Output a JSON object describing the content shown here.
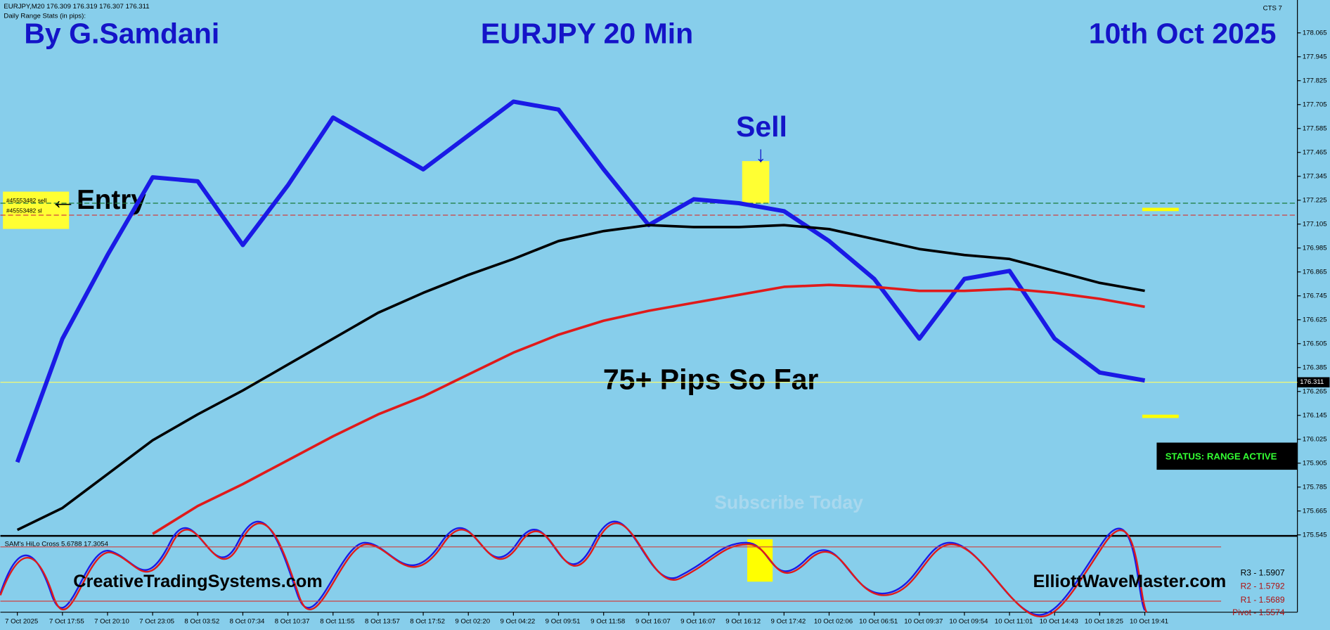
{
  "chart_data": {
    "type": "line",
    "symbol_info": "EURJPY,M20  176.309 176.319 176.307 176.311",
    "stats_title": "Daily Range Stats (in pips):",
    "author": "By G.Samdani",
    "title": "EURJPY 20 Min",
    "date": "10th Oct 2025",
    "platform_tag": "CTS 7",
    "annotations": {
      "sell": "Sell",
      "entry": "←Entry",
      "result": "75+ Pips So Far",
      "subscribe": "Subscribe Today",
      "order_sell": "#45553482 sell",
      "order_sl": "#45553482 sl"
    },
    "status": "STATUS: RANGE ACTIVE",
    "indicator_title": "SAM's HiLo Cross 5.6788 17.3054",
    "website_left": "CreativeTradingSystems.com",
    "website_right": "ElliottWaveMaster.com",
    "pivots": [
      "R3 - 1.5907",
      "R2 - 1.5792",
      "R1 - 1.5689",
      "Pivot - 1.5574"
    ],
    "last_price": 176.311,
    "levels": [
      {
        "value": 177.21,
        "color": "#1a7a3a"
      },
      {
        "value": 177.15,
        "color": "#d04040"
      }
    ],
    "categories": [
      "7 Oct 2025",
      "7 Oct 17:55",
      "7 Oct 20:10",
      "7 Oct 23:05",
      "8 Oct 03:52",
      "8 Oct 07:34",
      "8 Oct 10:37",
      "8 Oct 11:55",
      "8 Oct 13:57",
      "8 Oct 17:52",
      "9 Oct 02:20",
      "9 Oct 04:22",
      "9 Oct 09:51",
      "9 Oct 11:58",
      "9 Oct 16:07",
      "9 Oct 16:07",
      "9 Oct 16:12",
      "9 Oct 17:42",
      "10 Oct 02:06",
      "10 Oct 06:51",
      "10 Oct 09:37",
      "10 Oct 09:54",
      "10 Oct 11:01",
      "10 Oct 14:43",
      "10 Oct 18:25",
      "10 Oct 19:41"
    ],
    "series": [
      {
        "color": "#1a1ae6",
        "values": [
          175.91,
          176.53,
          176.95,
          177.34,
          177.32,
          177.0,
          177.3,
          177.64,
          177.51,
          177.38,
          177.55,
          177.72,
          177.68,
          177.38,
          177.1,
          177.23,
          177.21,
          177.17,
          177.02,
          176.83,
          176.53,
          176.83,
          176.87,
          176.53,
          176.36,
          176.32
        ]
      },
      {
        "color": "#e01a1a",
        "values": [
          null,
          null,
          null,
          175.55,
          175.69,
          175.8,
          175.92,
          176.04,
          176.15,
          176.24,
          176.35,
          176.46,
          176.55,
          176.62,
          176.67,
          176.71,
          176.75,
          176.79,
          176.8,
          176.79,
          176.77,
          176.77,
          176.78,
          176.76,
          176.73,
          176.69
        ]
      },
      {
        "color": "#000000",
        "values": [
          175.57,
          175.68,
          175.85,
          176.02,
          176.15,
          176.27,
          176.4,
          176.53,
          176.66,
          176.76,
          176.85,
          176.93,
          177.02,
          177.07,
          177.1,
          177.09,
          177.09,
          177.1,
          177.08,
          177.03,
          176.98,
          176.95,
          176.93,
          176.87,
          176.81,
          176.77
        ]
      }
    ],
    "ylim": [
      175.54,
      178.23
    ],
    "yticks": [
      178.065,
      177.945,
      177.825,
      177.705,
      177.585,
      177.465,
      177.345,
      177.225,
      177.105,
      176.985,
      176.865,
      176.745,
      176.625,
      176.505,
      176.385,
      176.265,
      176.145,
      176.025,
      175.905,
      175.785,
      175.665,
      175.545
    ],
    "grid": false
  }
}
